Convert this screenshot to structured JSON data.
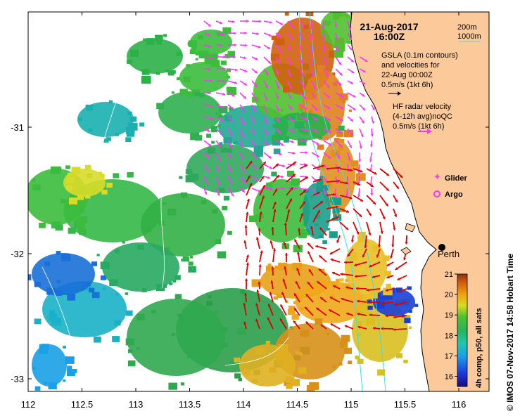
{
  "map": {
    "date": "21-Aug-2017",
    "time": "16:00Z",
    "depth_legend": {
      "line1": "200m",
      "line2": "1000m"
    },
    "gsla_note": [
      "GSLA (0.1m contours)",
      "and velocities for",
      "22-Aug 00:00Z",
      "0.5m/s (1kt 6h)"
    ],
    "hf_note": [
      "HF radar velocity",
      "(4-12h avg)noQC",
      "0.5m/s (1kt 6h)"
    ],
    "glider_label": "Glider",
    "argo_label": "Argo",
    "city_label": "Perth",
    "credit": "© IMOS 07-Nov-2017 14:58 Hobart Time",
    "colorbar": {
      "title": "4h comp, p50, all sats",
      "ticks": [
        "21",
        "20",
        "19",
        "18",
        "17",
        "16"
      ],
      "min": 15.5,
      "max": 21
    },
    "x_axis_ticks": [
      "112",
      "112.5",
      "113",
      "113.5",
      "114",
      "114.5",
      "115",
      "115.5",
      "116"
    ],
    "y_axis_ticks": [
      "-31",
      "-32",
      "-33"
    ],
    "colors": {
      "land": "#fbc99a",
      "hf_arrow": "#ff33ff",
      "current_arrow": "#e00000",
      "contour": "#40e0e0",
      "glider": "#ff33ff",
      "argo": "#ff33ff"
    }
  }
}
